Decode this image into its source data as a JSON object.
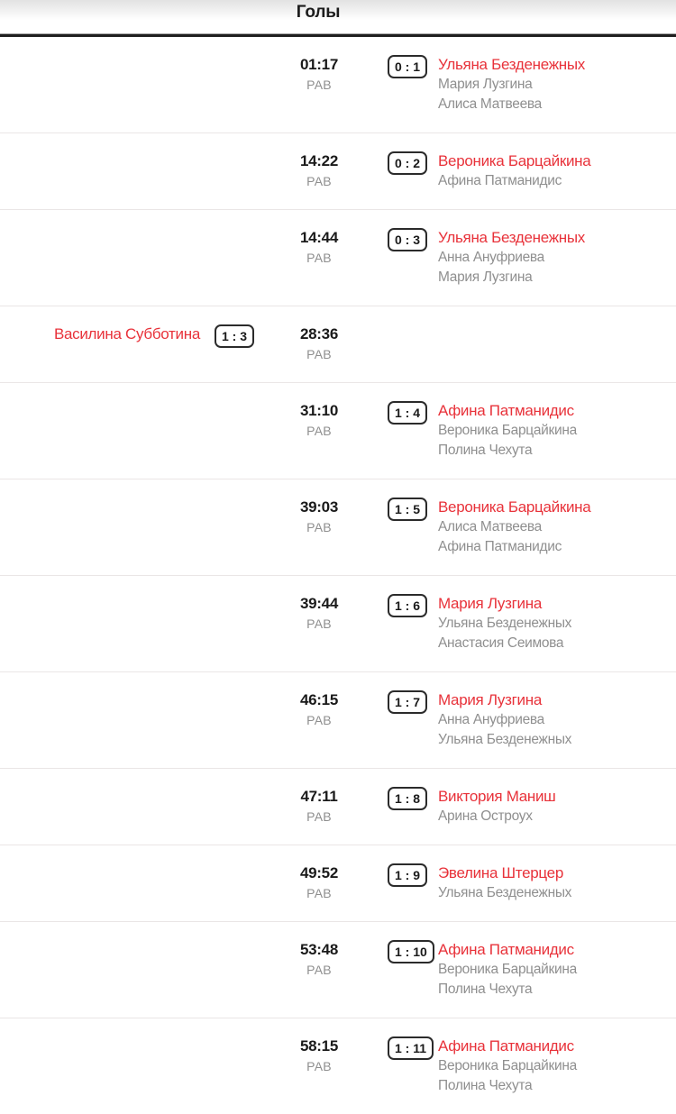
{
  "header": {
    "title": "Голы"
  },
  "colors": {
    "scorer_red": "#e8323a",
    "assist_gray": "#8f8f8f",
    "badge_border": "#2b2b2b",
    "separator": "#eae6e6",
    "header_rule": "#1f1f1f"
  },
  "goals": [
    {
      "side": "away",
      "time": "01:17",
      "strength": "РАВ",
      "score": "0 : 1",
      "scorer": "Ульяна Безденежных",
      "assists": [
        "Мария Лузгина",
        "Алиса Матвеева"
      ]
    },
    {
      "side": "away",
      "time": "14:22",
      "strength": "РАВ",
      "score": "0 : 2",
      "scorer": "Вероника Барцайкина",
      "assists": [
        "Афина Патманидис"
      ]
    },
    {
      "side": "away",
      "time": "14:44",
      "strength": "РАВ",
      "score": "0 : 3",
      "scorer": "Ульяна Безденежных",
      "assists": [
        "Анна Ануфриева",
        "Мария Лузгина"
      ]
    },
    {
      "side": "home",
      "time": "28:36",
      "strength": "РАВ",
      "score": "1 : 3",
      "scorer": "Василина Субботина",
      "assists": []
    },
    {
      "side": "away",
      "time": "31:10",
      "strength": "РАВ",
      "score": "1 : 4",
      "scorer": "Афина Патманидис",
      "assists": [
        "Вероника Барцайкина",
        "Полина Чехута"
      ]
    },
    {
      "side": "away",
      "time": "39:03",
      "strength": "РАВ",
      "score": "1 : 5",
      "scorer": "Вероника Барцайкина",
      "assists": [
        "Алиса Матвеева",
        "Афина Патманидис"
      ]
    },
    {
      "side": "away",
      "time": "39:44",
      "strength": "РАВ",
      "score": "1 : 6",
      "scorer": "Мария Лузгина",
      "assists": [
        "Ульяна Безденежных",
        "Анастасия Сеимова"
      ]
    },
    {
      "side": "away",
      "time": "46:15",
      "strength": "РАВ",
      "score": "1 : 7",
      "scorer": "Мария Лузгина",
      "assists": [
        "Анна Ануфриева",
        "Ульяна Безденежных"
      ]
    },
    {
      "side": "away",
      "time": "47:11",
      "strength": "РАВ",
      "score": "1 : 8",
      "scorer": "Виктория Маниш",
      "assists": [
        "Арина Остроух"
      ]
    },
    {
      "side": "away",
      "time": "49:52",
      "strength": "РАВ",
      "score": "1 : 9",
      "scorer": "Эвелина Штерцер",
      "assists": [
        "Ульяна Безденежных"
      ]
    },
    {
      "side": "away",
      "time": "53:48",
      "strength": "РАВ",
      "score": "1 : 10",
      "scorer": "Афина Патманидис",
      "assists": [
        "Вероника Барцайкина",
        "Полина Чехута"
      ]
    },
    {
      "side": "away",
      "time": "58:15",
      "strength": "РАВ",
      "score": "1 : 11",
      "scorer": "Афина Патманидис",
      "assists": [
        "Вероника Барцайкина",
        "Полина Чехута"
      ]
    }
  ]
}
